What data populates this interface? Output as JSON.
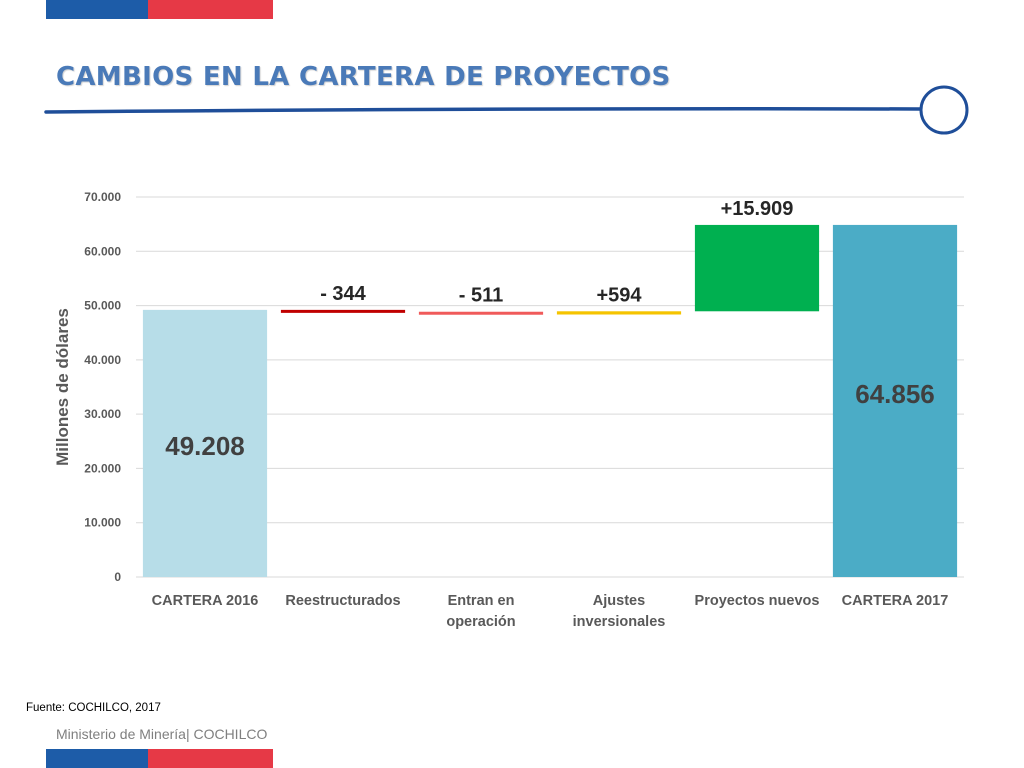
{
  "slide": {
    "title": "CAMBIOS EN LA CARTERA DE PROYECTOS",
    "source": "Fuente: COCHILCO, 2017",
    "footer": "Ministerio de Minería| COCHILCO"
  },
  "colors": {
    "title": "#4a7ab8",
    "flag_blue": "#1d5ca8",
    "flag_red": "#e63946",
    "rule": "#1f4e99",
    "axis_text": "#595959",
    "gridline": "#d9d9d9"
  },
  "chart_data": {
    "type": "waterfall",
    "ylabel": "Millones de dólares",
    "ylim": [
      0,
      70000
    ],
    "yticks": [
      0,
      10000,
      20000,
      30000,
      40000,
      50000,
      60000,
      70000
    ],
    "ytick_labels": [
      "0",
      "10.000",
      "20.000",
      "30.000",
      "40.000",
      "50.000",
      "60.000",
      "70.000"
    ],
    "grid": true,
    "categories": [
      [
        "CARTERA 2016"
      ],
      [
        "Reestructurados"
      ],
      [
        "Entran en",
        "operación"
      ],
      [
        "Ajustes",
        "inversionales"
      ],
      [
        "Proyectos nuevos"
      ],
      [
        "CARTERA 2017"
      ]
    ],
    "bars": [
      {
        "kind": "total",
        "value": 49208,
        "label": "49.208",
        "color": "#b7dde8"
      },
      {
        "kind": "delta",
        "value": -344,
        "label": "- 344",
        "color": "#c00000"
      },
      {
        "kind": "delta",
        "value": -511,
        "label": "- 511",
        "color": "#f05a5a"
      },
      {
        "kind": "delta",
        "value": 594,
        "label": "+594",
        "color": "#f5c400"
      },
      {
        "kind": "delta",
        "value": 15909,
        "label": "+15.909",
        "color": "#00b050"
      },
      {
        "kind": "total",
        "value": 64856,
        "label": "64.856",
        "color": "#4bacc6"
      }
    ]
  }
}
